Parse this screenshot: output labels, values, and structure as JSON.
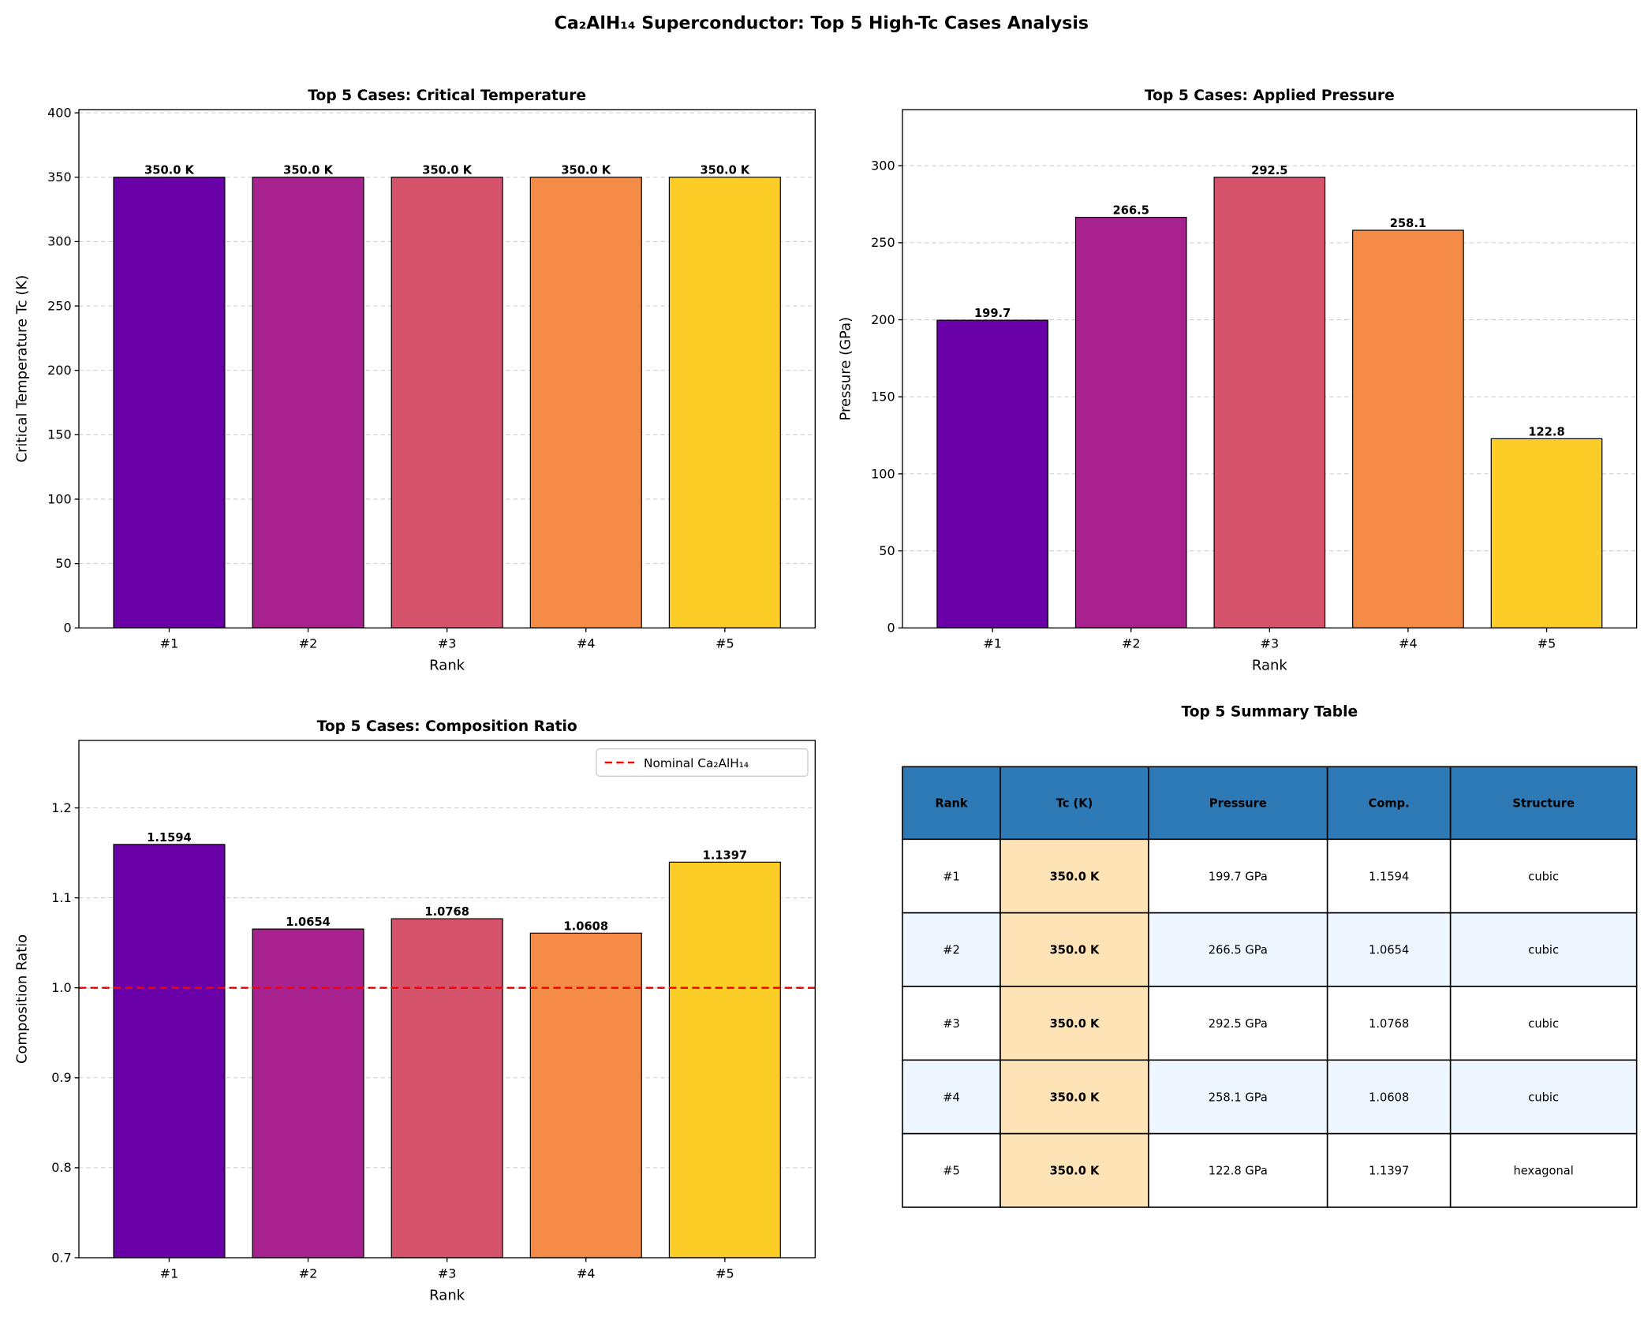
{
  "title": "Ca₂AlH₁₄ Superconductor: Top 5 High-Tc Cases Analysis",
  "colors": [
    "#6a00a8",
    "#a8228f",
    "#d6546b",
    "#f48b47",
    "#fccd27"
  ],
  "chart_data": [
    {
      "type": "bar",
      "title": "Top 5 Cases: Critical Temperature",
      "xlabel": "Rank",
      "ylabel": "Critical Temperature Tc (K)",
      "categories": [
        "#1",
        "#2",
        "#3",
        "#4",
        "#5"
      ],
      "values": [
        350.0,
        350.0,
        350.0,
        350.0,
        350.0
      ],
      "data_labels": [
        "350.0 K",
        "350.0 K",
        "350.0 K",
        "350.0 K",
        "350.0 K"
      ],
      "ylim": [
        0,
        402.5
      ],
      "yticks": [
        0,
        50,
        100,
        150,
        200,
        250,
        300,
        350,
        400
      ],
      "ytick_labels": [
        "0",
        "50",
        "100",
        "150",
        "200",
        "250",
        "300",
        "350",
        "400"
      ],
      "grid": "y-dashed"
    },
    {
      "type": "bar",
      "title": "Top 5 Cases: Applied Pressure",
      "xlabel": "Rank",
      "ylabel": "Pressure (GPa)",
      "categories": [
        "#1",
        "#2",
        "#3",
        "#4",
        "#5"
      ],
      "values": [
        199.7,
        266.5,
        292.5,
        258.1,
        122.8
      ],
      "data_labels": [
        "199.7",
        "266.5",
        "292.5",
        "258.1",
        "122.8"
      ],
      "ylim": [
        0,
        336.4
      ],
      "yticks": [
        0,
        50,
        100,
        150,
        200,
        250,
        300
      ],
      "ytick_labels": [
        "0",
        "50",
        "100",
        "150",
        "200",
        "250",
        "300"
      ],
      "grid": "y-dashed"
    },
    {
      "type": "bar",
      "title": "Top 5 Cases: Composition Ratio",
      "xlabel": "Rank",
      "ylabel": "Composition Ratio",
      "categories": [
        "#1",
        "#2",
        "#3",
        "#4",
        "#5"
      ],
      "values": [
        1.1594,
        1.0654,
        1.0768,
        1.0608,
        1.1397
      ],
      "data_labels": [
        "1.1594",
        "1.0654",
        "1.0768",
        "1.0608",
        "1.1397"
      ],
      "ylim": [
        0.7,
        1.275
      ],
      "yticks": [
        0.7,
        0.8,
        0.9,
        1.0,
        1.1,
        1.2
      ],
      "ytick_labels": [
        "0.7",
        "0.8",
        "0.9",
        "1.0",
        "1.1",
        "1.2"
      ],
      "grid": "y-dashed",
      "reference_line": {
        "y": 1.0,
        "label": "Nominal Ca₂AlH₁₄",
        "color": "#ff0000",
        "style": "dashed"
      },
      "legend": "top-right"
    }
  ],
  "table": {
    "title": "Top 5 Summary Table",
    "header_color": "#2e7ab6",
    "highlight_color": "#fde3b5",
    "alt_row_color": "#eef6ff",
    "headers": [
      "Rank",
      "Tc (K)",
      "Pressure",
      "Comp.",
      "Structure"
    ],
    "rows": [
      [
        "#1",
        "350.0 K",
        "199.7 GPa",
        "1.1594",
        "cubic"
      ],
      [
        "#2",
        "350.0 K",
        "266.5 GPa",
        "1.0654",
        "cubic"
      ],
      [
        "#3",
        "350.0 K",
        "292.5 GPa",
        "1.0768",
        "cubic"
      ],
      [
        "#4",
        "350.0 K",
        "258.1 GPa",
        "1.0608",
        "cubic"
      ],
      [
        "#5",
        "350.0 K",
        "122.8 GPa",
        "1.1397",
        "hexagonal"
      ]
    ]
  }
}
